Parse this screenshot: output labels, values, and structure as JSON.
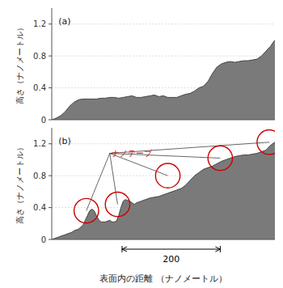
{
  "chart_data": [
    {
      "type": "area",
      "title": "(a)",
      "x": [
        0.0,
        0.02,
        0.04,
        0.06,
        0.08,
        0.1,
        0.12,
        0.14,
        0.16,
        0.18,
        0.2,
        0.22,
        0.24,
        0.26,
        0.28,
        0.3,
        0.32,
        0.34,
        0.36,
        0.38,
        0.4,
        0.42,
        0.44,
        0.46,
        0.48,
        0.5,
        0.52,
        0.54,
        0.56,
        0.58,
        0.6,
        0.62,
        0.64,
        0.66,
        0.68,
        0.7,
        0.72,
        0.74,
        0.76,
        0.78,
        0.8,
        0.82,
        0.84,
        0.86,
        0.88,
        0.9,
        0.92,
        0.94,
        0.96,
        0.98,
        1.0
      ],
      "values": [
        0.0,
        0.02,
        0.05,
        0.1,
        0.17,
        0.22,
        0.25,
        0.26,
        0.26,
        0.26,
        0.26,
        0.27,
        0.27,
        0.28,
        0.28,
        0.27,
        0.28,
        0.29,
        0.3,
        0.28,
        0.28,
        0.29,
        0.3,
        0.31,
        0.29,
        0.3,
        0.28,
        0.28,
        0.28,
        0.3,
        0.32,
        0.33,
        0.36,
        0.4,
        0.42,
        0.48,
        0.58,
        0.66,
        0.7,
        0.72,
        0.73,
        0.72,
        0.73,
        0.74,
        0.74,
        0.75,
        0.76,
        0.8,
        0.86,
        0.92,
        1.0
      ],
      "xlim": [
        0,
        1
      ],
      "ylim": [
        0,
        1.4
      ],
      "yticks": [
        0,
        0.4,
        0.8,
        1.2
      ],
      "ylabel": "高さ（ナノメートル）",
      "grid": true,
      "tick_labels": "y",
      "color": "#7a7a7a"
    },
    {
      "type": "area",
      "title": "(b)",
      "x": [
        0.0,
        0.01,
        0.02,
        0.03,
        0.04,
        0.05,
        0.06,
        0.07,
        0.08,
        0.09,
        0.1,
        0.12,
        0.14,
        0.15,
        0.16,
        0.17,
        0.18,
        0.19,
        0.2,
        0.21,
        0.22,
        0.23,
        0.24,
        0.25,
        0.26,
        0.27,
        0.28,
        0.29,
        0.3,
        0.31,
        0.32,
        0.33,
        0.34,
        0.35,
        0.36,
        0.37,
        0.38,
        0.4,
        0.42,
        0.44,
        0.46,
        0.48,
        0.5,
        0.52,
        0.54,
        0.56,
        0.58,
        0.6,
        0.62,
        0.64,
        0.66,
        0.68,
        0.7,
        0.72,
        0.74,
        0.76,
        0.78,
        0.8,
        0.82,
        0.84,
        0.86,
        0.88,
        0.9,
        0.92,
        0.94,
        0.96,
        0.98,
        1.0
      ],
      "values": [
        0.0,
        0.01,
        0.02,
        0.03,
        0.04,
        0.05,
        0.06,
        0.07,
        0.08,
        0.09,
        0.11,
        0.13,
        0.18,
        0.24,
        0.3,
        0.36,
        0.38,
        0.36,
        0.3,
        0.25,
        0.22,
        0.22,
        0.22,
        0.23,
        0.24,
        0.22,
        0.22,
        0.23,
        0.3,
        0.4,
        0.48,
        0.5,
        0.49,
        0.48,
        0.46,
        0.44,
        0.46,
        0.48,
        0.5,
        0.52,
        0.53,
        0.54,
        0.56,
        0.58,
        0.6,
        0.62,
        0.64,
        0.68,
        0.74,
        0.8,
        0.84,
        0.88,
        0.9,
        0.92,
        0.95,
        0.98,
        1.0,
        1.02,
        1.04,
        1.05,
        1.06,
        1.06,
        1.07,
        1.08,
        1.1,
        1.12,
        1.18,
        1.22
      ],
      "xlim": [
        0,
        1
      ],
      "ylim": [
        0,
        1.4
      ],
      "yticks": [
        0,
        0.4,
        0.8,
        1.2
      ],
      "ylabel": "高さ（ナノメートル）",
      "xlabel": "表面内の距離 （ナノメートル）",
      "grid": true,
      "tick_labels": "y",
      "color": "#7a7a7a",
      "annotations": [
        {
          "text": "ナノテープ",
          "x": 0.26,
          "y": 1.08,
          "color": "#cc0000",
          "circles": [
            {
              "cx": 0.155,
              "cy": 0.36,
              "r": 0.055
            },
            {
              "cx": 0.295,
              "cy": 0.44,
              "r": 0.055
            },
            {
              "cx": 0.52,
              "cy": 0.8,
              "r": 0.055
            },
            {
              "cx": 0.755,
              "cy": 1.02,
              "r": 0.055
            },
            {
              "cx": 0.975,
              "cy": 1.22,
              "r": 0.055
            }
          ]
        },
        {
          "text": "200",
          "x0": 0.315,
          "x1": 0.755
        }
      ]
    }
  ]
}
